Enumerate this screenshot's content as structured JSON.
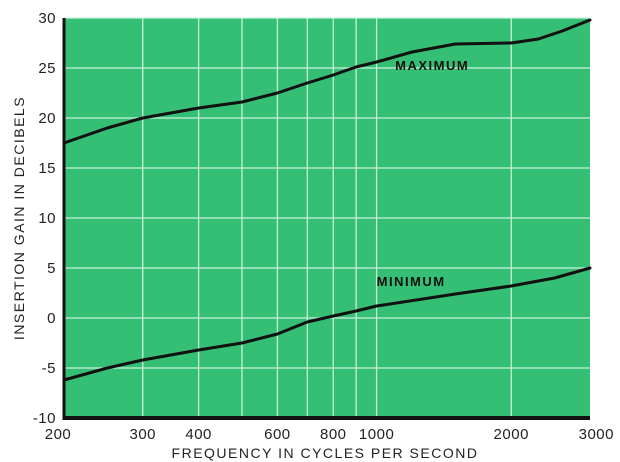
{
  "chart_data": {
    "type": "line",
    "xlabel": "FREQUENCY IN CYCLES PER SECOND",
    "ylabel": "INSERTION GAIN IN DECIBELS",
    "xscale": "log",
    "xlim": [
      200,
      3000
    ],
    "ylim": [
      -10,
      30
    ],
    "grid": true,
    "x_ticks": [
      200,
      300,
      400,
      600,
      800,
      1000,
      2000,
      3000
    ],
    "x_tick_labels": [
      "200",
      "300",
      "400",
      "600",
      "800",
      "1000",
      "2000",
      "3000"
    ],
    "y_ticks": [
      30,
      25,
      20,
      15,
      10,
      5,
      0,
      -5,
      -10
    ],
    "y_tick_labels": [
      "30",
      "25",
      "20",
      "15",
      "10",
      "5",
      "0",
      "-5",
      "-10"
    ],
    "background_color": "#35bf74",
    "grid_color": "#c9f0d9",
    "line_color": "#111111",
    "series": [
      {
        "name": "MAXIMUM",
        "x": [
          200,
          250,
          300,
          400,
          500,
          600,
          700,
          800,
          900,
          1000,
          1200,
          1500,
          2000,
          2300,
          2600,
          3000
        ],
        "values": [
          17.5,
          19.0,
          20.0,
          21.0,
          21.6,
          22.5,
          23.5,
          24.3,
          25.1,
          25.6,
          26.6,
          27.4,
          27.5,
          27.9,
          28.7,
          29.8
        ]
      },
      {
        "name": "MINIMUM",
        "x": [
          200,
          250,
          300,
          400,
          500,
          600,
          700,
          800,
          900,
          1000,
          1500,
          2000,
          2500,
          3000
        ],
        "values": [
          -6.2,
          -5.0,
          -4.2,
          -3.2,
          -2.5,
          -1.6,
          -0.4,
          0.2,
          0.7,
          1.2,
          2.4,
          3.2,
          4.0,
          5.0
        ]
      }
    ],
    "annotations": [
      {
        "text": "MAXIMUM",
        "x": 1100,
        "y": 24.8
      },
      {
        "text": "MINIMUM",
        "x": 1000,
        "y": 3.2
      }
    ]
  }
}
